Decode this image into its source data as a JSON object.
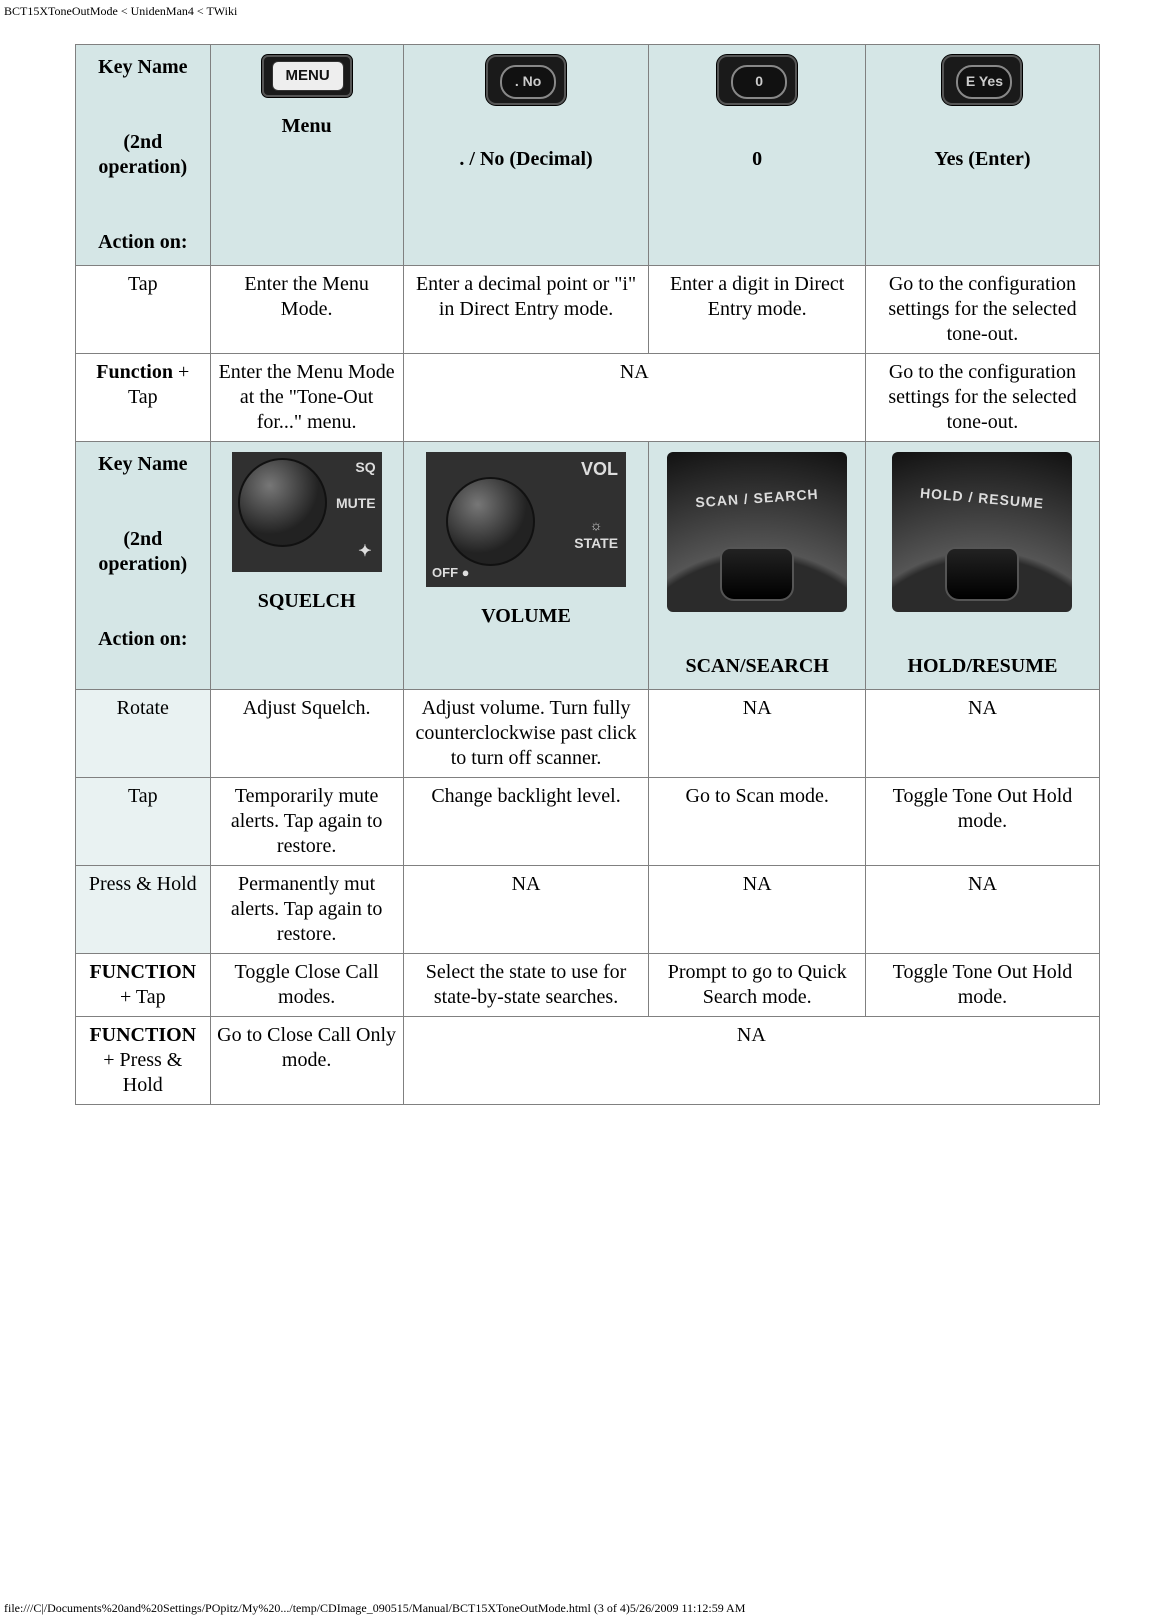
{
  "page_header": "BCT15XToneOutMode < UnidenMan4 < TWiki",
  "page_footer": "file:///C|/Documents%20and%20Settings/POpitz/My%20.../temp/CDImage_090515/Manual/BCT15XToneOutMode.html (3 of 4)5/26/2009 11:12:59 AM",
  "row_header_label_lines": [
    "Key Name",
    "(2nd operation)",
    "Action on:"
  ],
  "section1": {
    "columns": [
      "Menu",
      ". / No (Decimal)",
      "0",
      "Yes (Enter)"
    ],
    "key_icons": {
      "menu": "MENU",
      "no": ". No",
      "zero": "0",
      "yes": "E Yes"
    },
    "rows": [
      {
        "label": "Tap",
        "label_bg": "plain",
        "cells": [
          "Enter the Menu Mode.",
          "Enter a decimal point or \"i\" in Direct Entry mode.",
          "Enter a digit in Direct Entry mode.",
          "Go to the configuration settings for the selected tone-out."
        ]
      },
      {
        "label": "Function + Tap",
        "label_bg": "plain",
        "bold_label": true,
        "cells_layout": "1-merge2-1",
        "cells": [
          "Enter the Menu Mode at the \"Tone-Out for...\" menu.",
          "NA",
          "Go to the configuration settings for the selected tone-out."
        ]
      }
    ]
  },
  "section2": {
    "columns": [
      "SQUELCH",
      "VOLUME",
      "SCAN/SEARCH",
      "HOLD/RESUME"
    ],
    "key_icons": {
      "sq": {
        "labels": [
          "SQ",
          "MUTE"
        ],
        "marker": "✦"
      },
      "vol": {
        "top": "VOL",
        "mid": "☼",
        "midb": "STATE",
        "off": "OFF ●"
      },
      "scan": "SCAN / SEARCH",
      "hold": "HOLD / RESUME"
    },
    "rows": [
      {
        "label": "Rotate",
        "label_bg": "tint",
        "cells": [
          "Adjust Squelch.",
          "Adjust volume. Turn fully counterclockwise past click to turn off scanner.",
          "NA",
          "NA"
        ]
      },
      {
        "label": "Tap",
        "label_bg": "tint",
        "cells": [
          "Temporarily mute alerts. Tap again to restore.",
          "Change backlight level.",
          "Go to Scan mode.",
          "Toggle Tone Out Hold mode."
        ]
      },
      {
        "label": "Press & Hold",
        "label_bg": "tint",
        "cells": [
          "Permanently mut alerts. Tap again to restore.",
          "NA",
          "NA",
          "NA"
        ]
      },
      {
        "label": "FUNCTION + Tap",
        "label_bg": "plain",
        "bold_label": true,
        "cells": [
          "Toggle Close Call modes.",
          "Select the state to use for state-by-state searches.",
          "Prompt to go to Quick Search mode.",
          "Toggle Tone Out Hold mode."
        ]
      },
      {
        "label": "FUNCTION + Press & Hold",
        "label_bg": "plain",
        "bold_label": true,
        "cells_layout": "1-merge3",
        "cells": [
          "Go to Close Call Only mode.",
          "NA"
        ]
      }
    ]
  },
  "colors": {
    "header_bg": "#d5e6e6",
    "tint_bg": "#e9f2f2",
    "border": "#808080"
  }
}
